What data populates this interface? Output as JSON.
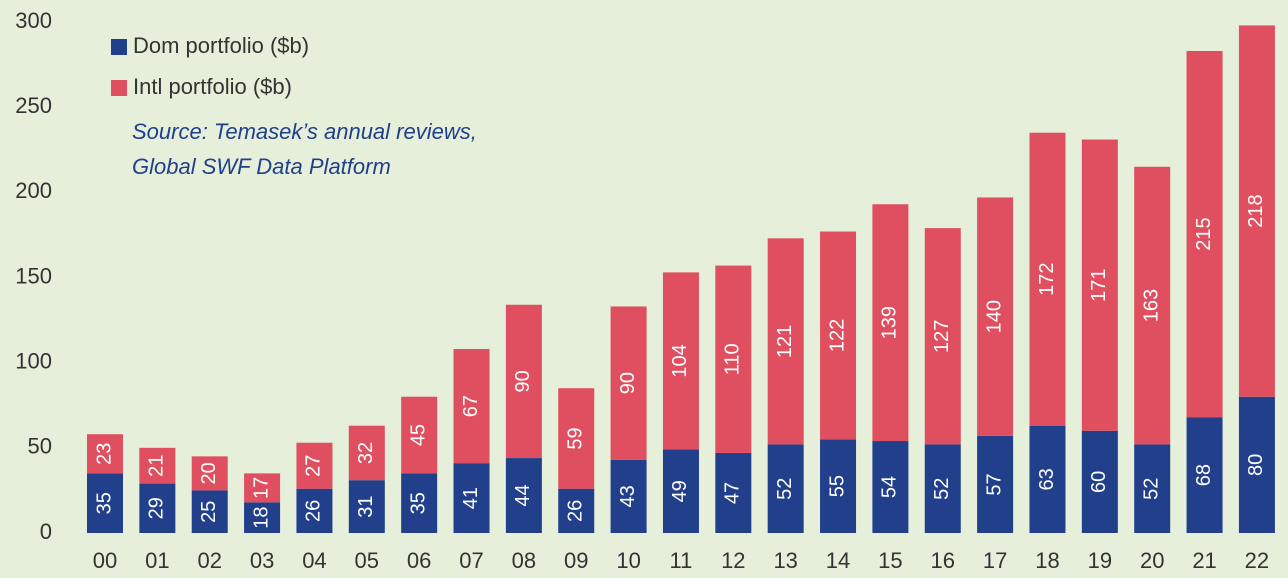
{
  "chart_data": {
    "type": "stacked_bar",
    "categories": [
      "00",
      "01",
      "02",
      "03",
      "04",
      "05",
      "06",
      "07",
      "08",
      "09",
      "10",
      "11",
      "12",
      "13",
      "14",
      "15",
      "16",
      "17",
      "18",
      "19",
      "20",
      "21",
      "22"
    ],
    "series": [
      {
        "name": "Dom portfolio ($b)",
        "color": "#213f8b",
        "values": [
          35,
          29,
          25,
          18,
          26,
          31,
          35,
          41,
          44,
          26,
          43,
          49,
          47,
          52,
          55,
          54,
          52,
          57,
          63,
          60,
          52,
          68,
          80
        ]
      },
      {
        "name": "Intl portfolio ($b)",
        "color": "#e04f5f",
        "values": [
          23,
          21,
          20,
          17,
          27,
          32,
          45,
          67,
          90,
          59,
          90,
          104,
          110,
          121,
          122,
          139,
          127,
          140,
          172,
          171,
          163,
          215,
          218
        ]
      }
    ],
    "ylim": [
      0,
      300
    ],
    "yticks": [
      0,
      50,
      100,
      150,
      200,
      250,
      300
    ],
    "grid": false,
    "legend": "upper left",
    "annotation": [
      "Source: Temasek’s annual reviews,",
      "Global SWF Data Platform"
    ]
  }
}
